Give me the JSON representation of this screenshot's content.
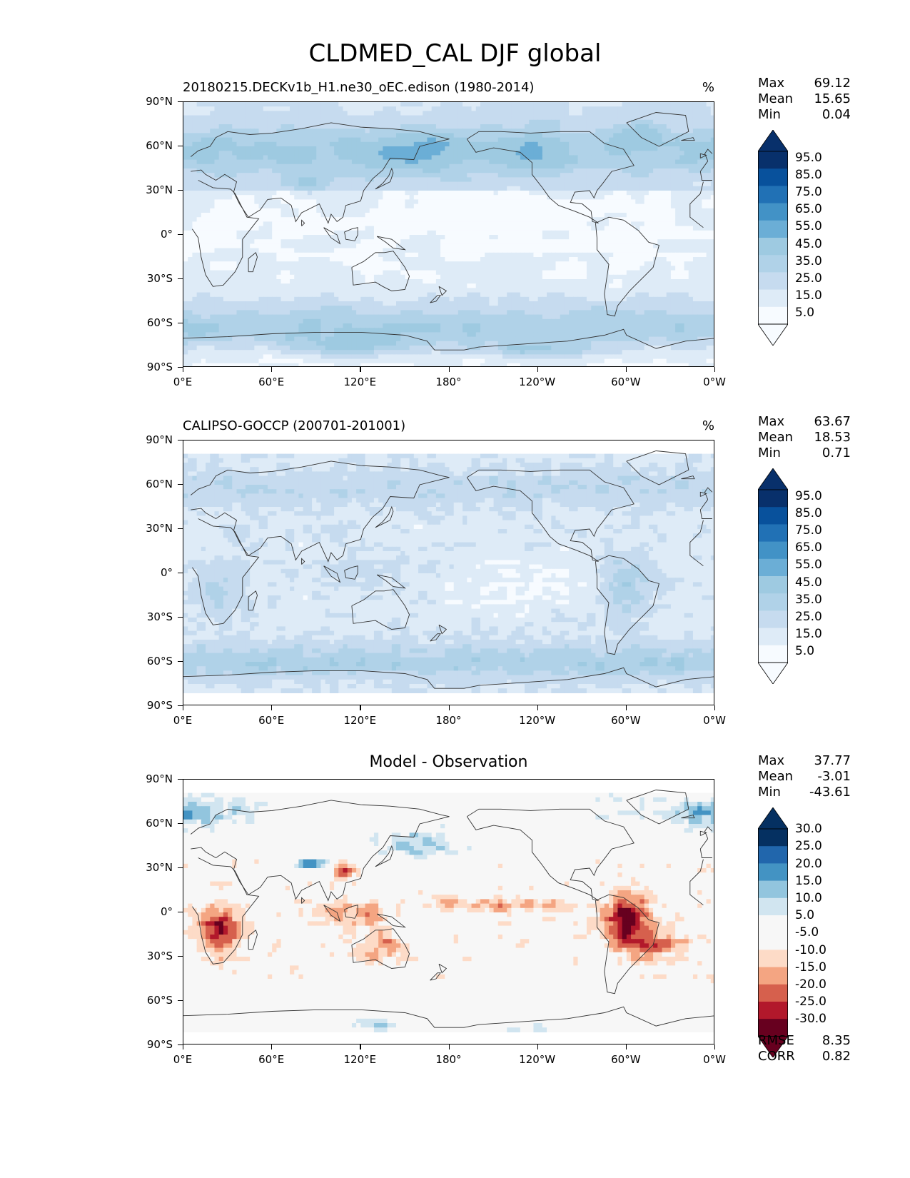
{
  "title": "CLDMED_CAL DJF global",
  "axes": {
    "lat_labels": [
      "90°N",
      "60°N",
      "30°N",
      "0°",
      "30°S",
      "60°S",
      "90°S"
    ],
    "lon_labels": [
      "0°E",
      "60°E",
      "120°E",
      "180°",
      "120°W",
      "60°W",
      "0°W"
    ]
  },
  "colors": {
    "seq": [
      "#f7fbff",
      "#deebf7",
      "#c6dbef",
      "#b0d2e8",
      "#9ecae1",
      "#6baed6",
      "#4292c6",
      "#2171b5",
      "#08519c",
      "#08306b"
    ],
    "div": [
      "#67001f",
      "#b2182b",
      "#d6604d",
      "#f4a582",
      "#fddbc7",
      "#f7f7f7",
      "#f7f7f7",
      "#d1e5f0",
      "#92c5de",
      "#4393c3",
      "#2166ac",
      "#053061"
    ],
    "coast": "#333333"
  },
  "panels": [
    {
      "id": "model",
      "left_title": "20180215.DECKv1b_H1.ne30_oEC.edison (1980-2014)",
      "center_title": "",
      "units": "%",
      "stats": [
        {
          "label": "Max",
          "value": "69.12"
        },
        {
          "label": "Mean",
          "value": "15.65"
        },
        {
          "label": "Min",
          "value": "0.04"
        }
      ],
      "colorbar": {
        "scale": "seq",
        "ticks": [
          "95.0",
          "85.0",
          "75.0",
          "65.0",
          "55.0",
          "45.0",
          "35.0",
          "25.0",
          "15.0",
          "5.0"
        ]
      },
      "metrics": []
    },
    {
      "id": "obs",
      "left_title": "CALIPSO-GOCCP (200701-201001)",
      "center_title": "",
      "units": "%",
      "stats": [
        {
          "label": "Max",
          "value": "63.67"
        },
        {
          "label": "Mean",
          "value": "18.53"
        },
        {
          "label": "Min",
          "value": "0.71"
        }
      ],
      "colorbar": {
        "scale": "seq",
        "ticks": [
          "95.0",
          "85.0",
          "75.0",
          "65.0",
          "55.0",
          "45.0",
          "35.0",
          "25.0",
          "15.0",
          "5.0"
        ]
      },
      "metrics": []
    },
    {
      "id": "diff",
      "left_title": "",
      "center_title": "Model - Observation",
      "units": "",
      "stats": [
        {
          "label": "Max",
          "value": "37.77"
        },
        {
          "label": "Mean",
          "value": "-3.01"
        },
        {
          "label": "Min",
          "value": "-43.61"
        }
      ],
      "colorbar": {
        "scale": "div",
        "ticks": [
          "30.0",
          "25.0",
          "20.0",
          "15.0",
          "10.0",
          "5.0",
          "-5.0",
          "-10.0",
          "-15.0",
          "-20.0",
          "-25.0",
          "-30.0"
        ]
      },
      "metrics": [
        {
          "label": "RMSE",
          "value": "8.35"
        },
        {
          "label": "CORR",
          "value": "0.82"
        }
      ]
    }
  ]
}
